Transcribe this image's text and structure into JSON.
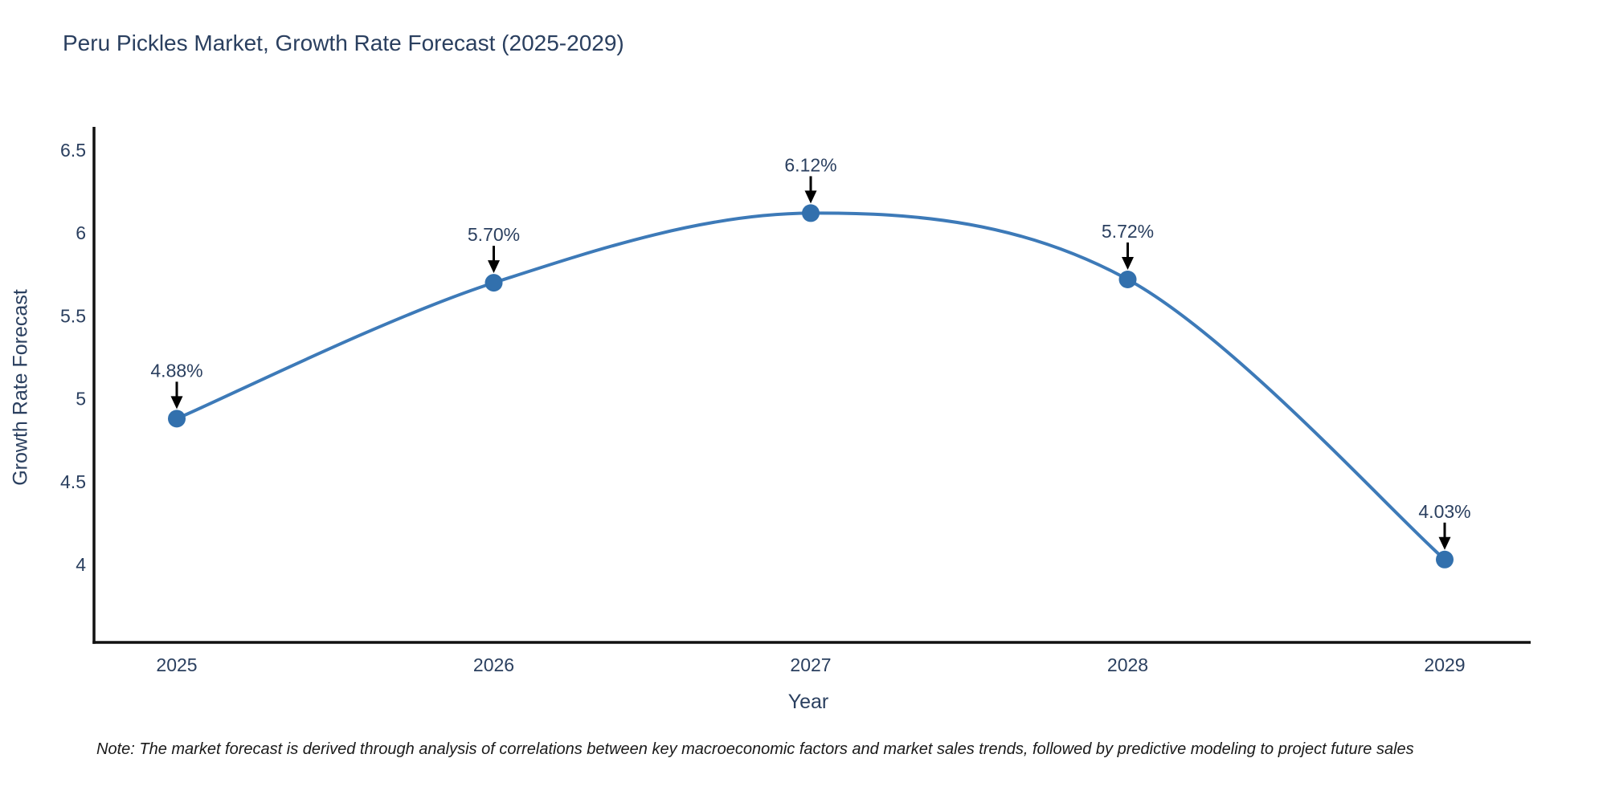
{
  "title": {
    "text": "Peru Pickles Market, Growth Rate Forecast (2025-2029)",
    "color": "#2a3f5f"
  },
  "note": {
    "text": "Note: The market forecast is derived through analysis of correlations between key macroeconomic factors and market sales trends, followed by predictive modeling to project future sales"
  },
  "chart_data": {
    "type": "line",
    "title": "Peru Pickles Market, Growth Rate Forecast (2025-2029)",
    "x": [
      2025,
      2026,
      2027,
      2028,
      2029
    ],
    "categories": [
      "2025",
      "2026",
      "2027",
      "2028",
      "2029"
    ],
    "series": [
      {
        "name": "Growth Rate Forecast",
        "values": [
          4.88,
          5.7,
          6.12,
          5.72,
          4.03
        ]
      }
    ],
    "point_labels": [
      "4.88%",
      "5.70%",
      "6.12%",
      "5.72%",
      "4.03%"
    ],
    "xlabel": "Year",
    "ylabel": "Growth Rate Forecast",
    "yticks": [
      6.5,
      6,
      5.5,
      5,
      4.5,
      4
    ],
    "ytick_labels": [
      "6.5",
      "6",
      "5.5",
      "5",
      "4.5",
      "4"
    ],
    "xtick_labels": [
      "2025",
      "2026",
      "2027",
      "2028",
      "2029"
    ],
    "ylim": [
      3.53,
      6.64
    ],
    "line_shape": "spline",
    "grid": false,
    "legend": null,
    "colors": {
      "line": "#3d7ab8",
      "marker": "#3270ad",
      "axis": "#111111",
      "tick_label": "#2a3f5f",
      "annotation_text": "#2a3f5f",
      "annotation_arrow": "#000000"
    }
  }
}
